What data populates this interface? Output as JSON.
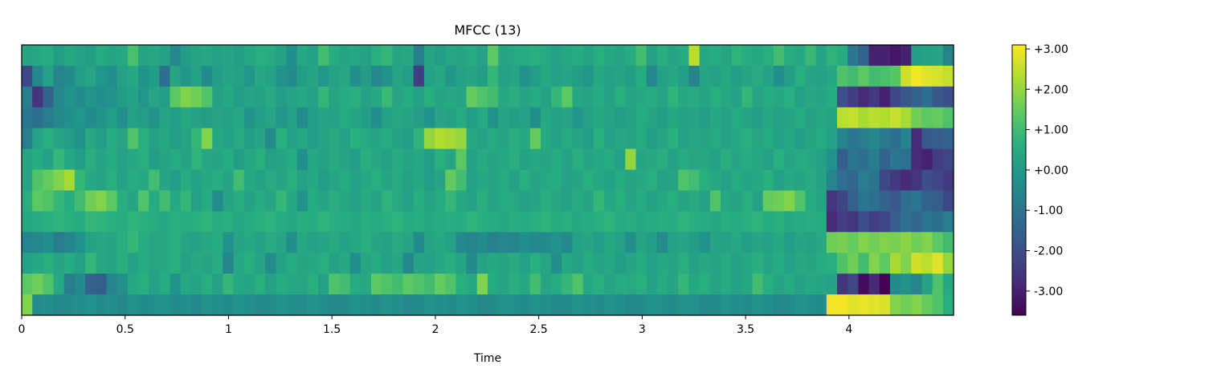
{
  "chart_data": {
    "type": "heatmap",
    "title": "MFCC (13)",
    "xlabel": "Time",
    "ylabel": "",
    "colormap": "viridis",
    "xlim": [
      0,
      4.5
    ],
    "x_ticks": [
      0,
      0.5,
      1,
      1.5,
      2,
      2.5,
      3,
      3.5,
      4
    ],
    "x_tick_labels": [
      "0",
      "0.5",
      "1",
      "1.5",
      "2",
      "2.5",
      "3",
      "3.5",
      "4"
    ],
    "y_ticks_shown": false,
    "n_coefficients": 13,
    "n_frames": 88,
    "frame_hop_seconds": 0.0512,
    "color_range": [
      -3.6,
      3.1
    ],
    "colorbar_ticks": [
      3,
      2,
      1,
      0,
      -1,
      -2,
      -3
    ],
    "colorbar_tick_labels": [
      "+3.00",
      "+2.00",
      "+1.00",
      "+0.00",
      "-1.00",
      "-2.00",
      "-3.00"
    ],
    "row_order": "row 0 = top row of the image",
    "rows": [
      [
        0.3,
        0.4,
        0.5,
        0.1,
        0.4,
        0.2,
        0.1,
        0.5,
        0.3,
        0.4,
        1.1,
        0.3,
        0.4,
        0.2,
        -0.5,
        0.1,
        0.3,
        0.4,
        0.2,
        0.3,
        0.1,
        0.4,
        0.6,
        0.5,
        0.2,
        -0.3,
        0.4,
        0.2,
        1.0,
        0.5,
        0.3,
        0.4,
        0.2,
        0.6,
        0.8,
        0.3,
        0.4,
        -0.8,
        0.3,
        0.1,
        0.4,
        0.3,
        0.5,
        0.2,
        1.4,
        0.3,
        0.4,
        0.5,
        0.6,
        0.4,
        0.2,
        0.4,
        0.5,
        0.3,
        0.6,
        0.4,
        0.3,
        0.5,
        1.0,
        0.2,
        0.6,
        0.3,
        0.5,
        2.4,
        0.4,
        0.5,
        0.3,
        0.7,
        0.5,
        0.4,
        0.6,
        1.0,
        0.5,
        0.4,
        0.9,
        0.3,
        0.7,
        0.5,
        -1.0,
        -1.5,
        -3.0,
        -3.0,
        -3.2,
        -3.0,
        0.1,
        0.2,
        0.3,
        -0.6
      ],
      [
        -2.2,
        -0.5,
        0.2,
        -0.6,
        -0.4,
        0.1,
        0.3,
        -0.1,
        -0.3,
        0.2,
        0.4,
        -0.2,
        0.1,
        -1.2,
        0.3,
        -0.1,
        0.2,
        -0.4,
        0.1,
        0.3,
        0.2,
        -0.1,
        0.4,
        0.2,
        -0.2,
        -0.4,
        0.1,
        0.3,
        -0.1,
        0.2,
        0.4,
        -0.3,
        0.1,
        -0.5,
        -0.2,
        0.3,
        0.1,
        -2.4,
        0.2,
        0.4,
        -0.1,
        0.2,
        0.3,
        0.1,
        0.8,
        0.2,
        0.3,
        -0.2,
        0.1,
        0.4,
        0.2,
        0.3,
        0.1,
        -0.1,
        0.4,
        0.2,
        0.3,
        0.1,
        0.5,
        -0.5,
        0.2,
        0.4,
        0.1,
        -0.6,
        0.3,
        0.2,
        0.4,
        0.1,
        0.3,
        0.5,
        0.2,
        -0.3,
        0.1,
        0.6,
        0.3,
        0.2,
        0.4,
        1.2,
        1.0,
        1.4,
        1.0,
        1.1,
        1.3,
        2.6,
        3.0,
        2.8,
        2.7,
        2.5
      ],
      [
        -0.8,
        -2.6,
        -1.5,
        -0.5,
        -0.2,
        -0.4,
        -0.1,
        -0.3,
        -0.2,
        0.1,
        0.2,
        -0.1,
        0.3,
        0.1,
        1.4,
        1.8,
        1.6,
        1.2,
        0.2,
        0.4,
        0.1,
        0.3,
        0.2,
        0.5,
        0.1,
        0.3,
        0.4,
        0.2,
        0.8,
        0.3,
        0.5,
        0.6,
        0.2,
        0.4,
        0.9,
        0.3,
        0.5,
        0.2,
        0.6,
        0.3,
        0.4,
        0.3,
        1.5,
        1.2,
        1.0,
        0.4,
        0.6,
        0.3,
        0.5,
        0.2,
        0.8,
        1.4,
        0.4,
        0.3,
        0.5,
        0.2,
        0.6,
        0.3,
        0.4,
        0.5,
        0.3,
        0.7,
        0.4,
        0.5,
        0.3,
        0.6,
        0.4,
        0.2,
        0.8,
        0.3,
        0.5,
        0.4,
        0.6,
        0.2,
        0.4,
        0.3,
        0.5,
        -2.0,
        -2.4,
        -2.8,
        -2.5,
        -3.0,
        -2.2,
        -1.8,
        -1.5,
        -1.2,
        -1.8,
        -2.0
      ],
      [
        -1.0,
        -1.2,
        -0.8,
        -0.5,
        -0.3,
        -0.1,
        -0.4,
        -0.2,
        0.1,
        -0.3,
        0.2,
        0.1,
        -0.2,
        0.3,
        0.1,
        0.4,
        0.2,
        0.1,
        0.3,
        0.2,
        0.4,
        -0.2,
        0.1,
        0.3,
        -0.1,
        0.2,
        -0.4,
        0.1,
        0.3,
        0.2,
        0.5,
        0.3,
        0.1,
        -0.3,
        0.2,
        0.4,
        0.3,
        0.1,
        -0.2,
        0.3,
        0.2,
        0.5,
        0.1,
        0.4,
        -0.2,
        0.3,
        0.1,
        0.2,
        -0.3,
        0.4,
        0.2,
        0.3,
        -0.1,
        0.2,
        0.4,
        0.3,
        0.1,
        0.2,
        0.5,
        0.3,
        0.1,
        0.4,
        0.2,
        0.3,
        0.1,
        0.4,
        0.2,
        0.5,
        0.3,
        0.1,
        0.4,
        0.2,
        0.3,
        0.5,
        0.2,
        0.4,
        0.3,
        2.4,
        2.5,
        2.2,
        2.4,
        2.3,
        2.5,
        2.2,
        1.6,
        1.4,
        1.5,
        1.2
      ],
      [
        -0.8,
        0.2,
        0.6,
        0.3,
        0.1,
        -0.2,
        0.4,
        0.1,
        0.5,
        0.3,
        1.2,
        0.6,
        0.2,
        0.4,
        0.1,
        0.3,
        0.8,
        1.8,
        0.4,
        0.2,
        0.5,
        0.1,
        0.3,
        -0.4,
        0.6,
        0.2,
        0.4,
        0.1,
        0.3,
        0.5,
        0.2,
        0.6,
        0.4,
        0.3,
        0.5,
        0.2,
        0.1,
        0.7,
        2.0,
        2.3,
        2.2,
        2.0,
        0.4,
        0.2,
        0.5,
        0.3,
        0.6,
        0.4,
        1.5,
        0.4,
        0.2,
        0.5,
        0.3,
        0.1,
        0.6,
        0.2,
        0.4,
        0.3,
        0.5,
        0.1,
        0.3,
        0.6,
        0.2,
        0.4,
        0.3,
        0.5,
        0.2,
        0.4,
        0.6,
        0.3,
        0.5,
        0.2,
        0.4,
        0.1,
        0.3,
        0.5,
        0.2,
        -0.6,
        -1.0,
        -0.8,
        -0.5,
        -0.9,
        -1.2,
        -0.6,
        -2.8,
        -1.8,
        -1.6,
        -1.5
      ],
      [
        0.3,
        0.5,
        0.2,
        0.8,
        0.4,
        0.1,
        0.6,
        0.3,
        0.5,
        0.2,
        0.4,
        0.6,
        0.1,
        0.3,
        0.5,
        0.2,
        0.7,
        0.4,
        0.3,
        0.5,
        0.1,
        0.4,
        0.6,
        0.2,
        0.3,
        0.5,
        -0.3,
        0.4,
        0.2,
        0.5,
        0.3,
        0.1,
        0.6,
        0.4,
        0.2,
        0.5,
        0.3,
        0.4,
        0.1,
        0.6,
        0.3,
        1.4,
        0.2,
        0.5,
        0.3,
        0.4,
        0.6,
        0.2,
        0.4,
        0.3,
        0.5,
        0.2,
        0.6,
        0.3,
        0.4,
        0.5,
        0.2,
        2.0,
        0.3,
        0.4,
        0.6,
        0.2,
        0.5,
        0.3,
        0.4,
        0.2,
        0.6,
        0.3,
        0.5,
        0.4,
        0.2,
        0.6,
        0.3,
        0.5,
        0.4,
        0.2,
        -0.2,
        -1.6,
        -1.0,
        -1.2,
        -0.8,
        -1.5,
        -1.0,
        -1.2,
        -2.8,
        -3.0,
        -2.4,
        -2.2
      ],
      [
        0.3,
        1.2,
        1.5,
        1.8,
        2.2,
        0.8,
        0.4,
        0.3,
        0.6,
        0.2,
        0.5,
        0.4,
        1.0,
        0.3,
        0.1,
        0.5,
        0.2,
        0.4,
        0.6,
        0.3,
        1.0,
        0.4,
        0.2,
        0.5,
        0.3,
        0.6,
        0.2,
        0.4,
        0.1,
        0.3,
        0.5,
        0.2,
        0.4,
        0.6,
        0.3,
        0.5,
        0.2,
        0.4,
        0.1,
        0.3,
        1.5,
        1.0,
        0.2,
        0.4,
        0.3,
        0.5,
        0.2,
        0.6,
        0.3,
        0.4,
        0.5,
        0.2,
        0.3,
        0.6,
        0.4,
        0.2,
        0.5,
        0.3,
        0.4,
        0.6,
        0.2,
        0.3,
        1.2,
        1.0,
        0.6,
        0.4,
        0.2,
        0.5,
        0.3,
        0.4,
        0.6,
        0.2,
        0.4,
        0.3,
        0.5,
        0.2,
        -0.6,
        -1.2,
        -1.4,
        -0.8,
        -1.0,
        -2.2,
        -2.5,
        -2.8,
        -2.6,
        -2.0,
        -2.2,
        -2.5
      ],
      [
        0.6,
        1.4,
        1.2,
        0.8,
        0.5,
        1.0,
        1.6,
        1.8,
        1.4,
        0.6,
        0.3,
        1.2,
        0.5,
        1.0,
        0.4,
        0.8,
        0.2,
        0.5,
        -0.4,
        0.3,
        0.6,
        0.2,
        0.5,
        0.3,
        0.8,
        0.4,
        -0.2,
        0.5,
        0.3,
        0.6,
        0.4,
        0.2,
        0.5,
        0.3,
        0.7,
        0.4,
        0.2,
        0.6,
        0.3,
        0.5,
        0.8,
        0.4,
        0.2,
        0.6,
        0.3,
        0.5,
        0.4,
        0.2,
        0.3,
        0.6,
        0.4,
        0.2,
        0.5,
        0.3,
        0.8,
        0.4,
        0.6,
        0.3,
        0.5,
        0.2,
        0.4,
        0.6,
        0.3,
        0.5,
        0.2,
        1.2,
        0.4,
        0.3,
        0.6,
        0.2,
        1.5,
        1.6,
        1.8,
        1.2,
        0.5,
        0.3,
        -2.6,
        -2.2,
        -1.5,
        -1.0,
        -1.2,
        -1.5,
        -1.8,
        -1.2,
        -1.0,
        -1.5,
        -1.6,
        -2.2
      ],
      [
        0.4,
        0.5,
        0.6,
        0.7,
        0.6,
        0.5,
        0.8,
        0.7,
        0.6,
        0.5,
        0.7,
        0.6,
        0.5,
        0.4,
        0.6,
        0.5,
        0.6,
        0.7,
        0.5,
        0.6,
        0.4,
        0.5,
        0.6,
        0.7,
        0.5,
        0.4,
        0.6,
        0.5,
        0.7,
        0.6,
        0.5,
        0.4,
        0.6,
        0.5,
        0.6,
        0.7,
        0.5,
        0.6,
        0.4,
        0.5,
        0.6,
        0.5,
        0.7,
        0.6,
        0.5,
        0.4,
        0.6,
        0.5,
        0.6,
        0.7,
        0.5,
        0.6,
        0.4,
        0.5,
        0.6,
        0.7,
        0.5,
        0.6,
        0.4,
        0.5,
        0.6,
        0.5,
        0.7,
        0.6,
        0.5,
        0.4,
        0.6,
        0.5,
        0.6,
        0.7,
        0.5,
        0.6,
        0.4,
        0.5,
        0.6,
        0.5,
        -2.8,
        -2.4,
        -2.6,
        -2.0,
        -2.4,
        -2.2,
        -1.6,
        -1.2,
        -1.4,
        -1.0,
        -1.2,
        -0.8
      ],
      [
        -0.6,
        -0.5,
        -0.3,
        -0.8,
        -0.6,
        -0.2,
        0.2,
        0.4,
        0.3,
        0.6,
        0.8,
        0.5,
        0.3,
        0.4,
        0.6,
        0.3,
        0.2,
        0.4,
        0.5,
        -0.2,
        0.3,
        0.4,
        0.2,
        0.5,
        0.3,
        -0.3,
        0.4,
        0.2,
        0.3,
        0.5,
        0.2,
        0.4,
        0.6,
        0.3,
        0.2,
        0.5,
        0.3,
        -0.4,
        0.3,
        0.4,
        0.2,
        -0.5,
        -0.6,
        -0.4,
        -0.7,
        -0.5,
        -0.6,
        -0.3,
        -0.5,
        -0.4,
        -0.2,
        -0.5,
        0.2,
        0.3,
        0.1,
        0.4,
        0.2,
        -0.3,
        0.3,
        0.1,
        -0.4,
        0.2,
        0.3,
        0.1,
        -0.2,
        0.3,
        0.2,
        0.4,
        0.1,
        0.3,
        0.2,
        0.4,
        0.1,
        0.3,
        0.2,
        0.4,
        1.6,
        1.7,
        1.5,
        1.8,
        1.6,
        1.8,
        1.7,
        1.9,
        1.6,
        1.8,
        1.4,
        1.0
      ],
      [
        0.2,
        0.4,
        0.6,
        0.3,
        0.5,
        0.2,
        0.8,
        0.4,
        0.3,
        0.6,
        0.2,
        0.5,
        0.3,
        0.4,
        0.6,
        0.2,
        0.4,
        0.3,
        0.5,
        -0.6,
        0.4,
        0.6,
        0.3,
        -0.4,
        0.2,
        0.5,
        0.3,
        0.4,
        0.6,
        0.2,
        0.4,
        -0.3,
        0.3,
        0.5,
        0.2,
        0.4,
        -0.5,
        0.3,
        0.2,
        0.4,
        0.6,
        0.3,
        -0.4,
        0.2,
        0.4,
        0.3,
        0.5,
        0.2,
        0.6,
        0.3,
        -0.3,
        0.4,
        0.2,
        0.5,
        0.3,
        0.4,
        0.1,
        0.3,
        0.5,
        0.2,
        0.4,
        0.3,
        0.6,
        0.2,
        0.4,
        0.3,
        0.5,
        0.2,
        0.4,
        0.6,
        0.3,
        0.5,
        0.2,
        0.4,
        0.3,
        0.5,
        0.6,
        1.2,
        1.6,
        1.0,
        1.8,
        1.4,
        2.2,
        1.8,
        2.6,
        2.4,
        2.8,
        2.0
      ],
      [
        1.4,
        1.6,
        1.2,
        0.4,
        -0.8,
        -0.5,
        -1.5,
        -1.6,
        -0.6,
        -0.3,
        0.4,
        0.6,
        0.2,
        0.5,
        -0.2,
        0.4,
        0.3,
        0.6,
        0.2,
        0.8,
        0.4,
        0.3,
        0.6,
        0.2,
        0.5,
        0.4,
        0.3,
        0.6,
        0.2,
        1.2,
        1.0,
        0.5,
        0.4,
        1.4,
        1.2,
        1.0,
        1.4,
        1.2,
        1.0,
        1.5,
        1.2,
        0.6,
        0.4,
        1.8,
        0.5,
        0.3,
        0.6,
        0.4,
        1.0,
        0.3,
        0.5,
        0.8,
        1.2,
        0.4,
        0.6,
        0.3,
        0.5,
        0.4,
        0.6,
        0.2,
        0.5,
        0.3,
        0.8,
        0.4,
        0.6,
        0.3,
        0.5,
        0.2,
        0.4,
        1.0,
        0.6,
        0.3,
        0.5,
        0.2,
        0.4,
        0.3,
        0.2,
        -2.6,
        -2.2,
        -3.4,
        -2.8,
        -3.6,
        -0.4,
        -0.2,
        -0.6,
        0.2,
        1.2,
        0.4
      ],
      [
        1.8,
        -0.4,
        -0.3,
        -0.5,
        -0.4,
        -0.3,
        -0.2,
        -0.4,
        -0.3,
        -0.5,
        -0.2,
        -0.4,
        -0.3,
        -0.2,
        -0.4,
        -0.3,
        -0.5,
        -0.2,
        -0.3,
        -0.4,
        -0.2,
        -0.3,
        -0.5,
        -0.4,
        -0.2,
        -0.3,
        -0.4,
        -0.2,
        -0.3,
        -0.5,
        -0.4,
        -0.2,
        -0.3,
        -0.4,
        -0.2,
        -0.3,
        -0.5,
        -0.4,
        -0.2,
        -0.3,
        -0.4,
        -0.2,
        -0.3,
        -0.5,
        -0.4,
        -0.2,
        -0.3,
        -0.4,
        -0.2,
        -0.3,
        -0.5,
        -0.4,
        -0.2,
        -0.3,
        -0.4,
        -0.2,
        -0.3,
        -0.5,
        -0.4,
        -0.2,
        -0.3,
        -0.4,
        -0.2,
        -0.3,
        -0.5,
        -0.4,
        -0.2,
        -0.3,
        -0.4,
        -0.2,
        -0.3,
        -0.5,
        -0.4,
        -0.2,
        -0.3,
        -0.4,
        3.0,
        3.0,
        2.8,
        2.9,
        2.8,
        2.7,
        1.8,
        1.6,
        1.8,
        1.5,
        1.2,
        0.6
      ]
    ]
  }
}
